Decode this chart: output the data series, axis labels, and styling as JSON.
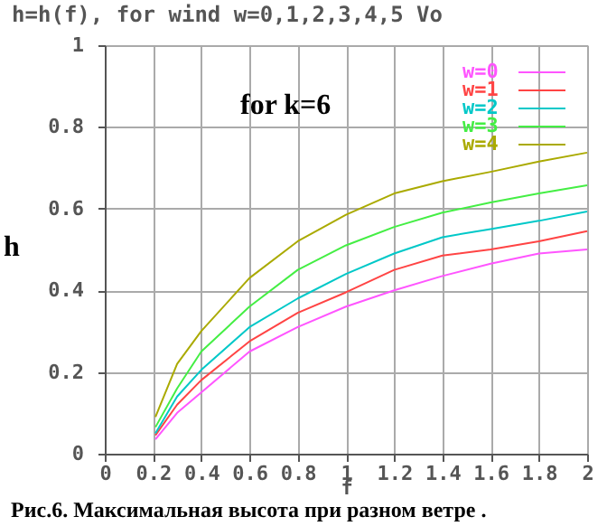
{
  "chart_data": {
    "type": "line",
    "title": "h=h(f), for wind w=0,1,2,3,4,5 Vo",
    "xlabel": "f",
    "ylabel": "h",
    "x": [
      0.21,
      0.3,
      0.4,
      0.6,
      0.8,
      1.0,
      1.2,
      1.4,
      1.6,
      1.8,
      2.0
    ],
    "series": [
      {
        "name": "w=0",
        "color": "#ff55ff",
        "values": [
          0.035,
          0.1,
          0.15,
          0.25,
          0.31,
          0.36,
          0.4,
          0.435,
          0.465,
          0.49,
          0.5
        ]
      },
      {
        "name": "w=1",
        "color": "#ff4444",
        "values": [
          0.045,
          0.12,
          0.18,
          0.275,
          0.345,
          0.395,
          0.45,
          0.485,
          0.5,
          0.52,
          0.545
        ]
      },
      {
        "name": "w=2",
        "color": "#00c8c8",
        "values": [
          0.05,
          0.14,
          0.205,
          0.31,
          0.38,
          0.44,
          0.49,
          0.53,
          0.55,
          0.57,
          0.593
        ]
      },
      {
        "name": "w=3",
        "color": "#44ee44",
        "values": [
          0.065,
          0.16,
          0.25,
          0.36,
          0.45,
          0.51,
          0.555,
          0.59,
          0.615,
          0.637,
          0.657
        ]
      },
      {
        "name": "w=4",
        "color": "#aaaa00",
        "values": [
          0.09,
          0.22,
          0.3,
          0.43,
          0.52,
          0.585,
          0.637,
          0.667,
          0.69,
          0.715,
          0.737
        ]
      }
    ],
    "xlim": [
      0,
      2
    ],
    "xticks": [
      0,
      0.2,
      0.4,
      0.6,
      0.8,
      1,
      1.2,
      1.4,
      1.6,
      1.8,
      2
    ],
    "ylim": [
      0,
      1
    ],
    "yticks": [
      0,
      0.2,
      0.4,
      0.6,
      0.8,
      1
    ],
    "grid": true,
    "legend": "top right",
    "marker": "none",
    "line_style": "solid",
    "annotations": [
      "for k=6",
      "Рис.6.  Максимальная высота при разном ветре ."
    ]
  }
}
